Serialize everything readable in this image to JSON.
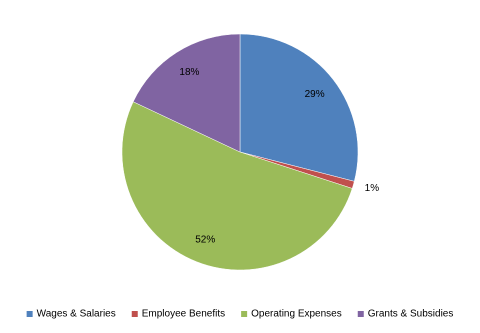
{
  "chart_data": {
    "type": "pie",
    "categories": [
      "Wages & Salaries",
      "Employee Benefits",
      "Operating Expenses",
      "Grants & Subsidies"
    ],
    "values": [
      29,
      1,
      52,
      18
    ],
    "value_labels": [
      "29%",
      "1%",
      "52%",
      "18%"
    ],
    "colors": [
      "#4f81bd",
      "#c0504d",
      "#9bbb59",
      "#8064a2"
    ],
    "legend": "bottom"
  }
}
